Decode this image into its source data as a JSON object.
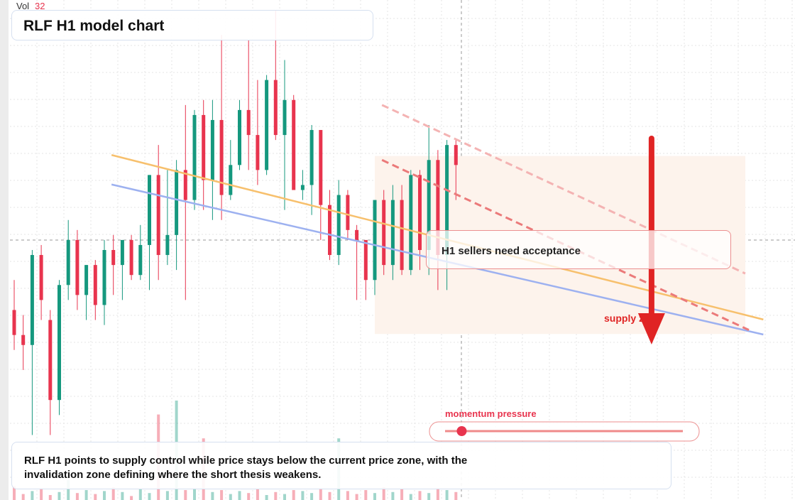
{
  "chart_data": {
    "type": "candlestick",
    "title": "RLF H1 model chart",
    "volume_label": "Vol",
    "volume_value": 32,
    "up_color": "#15987e",
    "down_color": "#e8344e",
    "ylim": [
      0,
      100
    ],
    "volume_lim": [
      0,
      100
    ],
    "open": [
      38,
      33,
      31,
      49,
      36,
      20,
      43,
      52,
      41,
      47,
      39,
      50,
      47,
      52,
      45,
      51,
      65,
      49,
      53,
      66,
      60,
      77,
      64,
      76,
      61,
      67,
      78,
      73,
      66,
      84,
      73,
      80,
      62,
      63,
      74,
      59,
      49,
      61,
      54,
      52,
      44,
      60,
      47,
      60,
      46,
      65,
      50,
      68,
      49,
      71
    ],
    "high": [
      44,
      37,
      50,
      51,
      38,
      44,
      56,
      54,
      47,
      48,
      52,
      53,
      52,
      53,
      55,
      65,
      71,
      66,
      68,
      79,
      78,
      80,
      80,
      93,
      72,
      80,
      92,
      84,
      85,
      98,
      88,
      81,
      66,
      75,
      74,
      62,
      64,
      62,
      55,
      52,
      60,
      62,
      63,
      63,
      66,
      66,
      75,
      70,
      72,
      72
    ],
    "low": [
      30,
      26,
      13,
      36,
      13,
      17,
      40,
      38,
      36,
      36,
      35,
      41,
      40,
      44,
      44,
      42,
      44,
      47,
      46,
      40,
      58,
      58,
      56,
      56,
      60,
      66,
      66,
      63,
      65,
      72,
      58,
      62,
      60,
      57,
      52,
      48,
      47,
      52,
      40,
      40,
      41,
      45,
      44,
      45,
      45,
      46,
      45,
      42,
      42,
      60
    ],
    "close": [
      33,
      31,
      49,
      40,
      20,
      43,
      52,
      41,
      47,
      39,
      50,
      47,
      52,
      45,
      51,
      65,
      49,
      53,
      66,
      60,
      77,
      64,
      76,
      61,
      67,
      78,
      73,
      66,
      84,
      73,
      80,
      62,
      63,
      74,
      59,
      49,
      61,
      54,
      52,
      44,
      60,
      47,
      60,
      46,
      65,
      50,
      68,
      49,
      71,
      67
    ],
    "volume": [
      14,
      6,
      9,
      12,
      5,
      8,
      20,
      7,
      10,
      6,
      9,
      13,
      8,
      4,
      11,
      7,
      86,
      9,
      100,
      10,
      12,
      62,
      8,
      10,
      6,
      9,
      7,
      11,
      5,
      8,
      6,
      10,
      9,
      7,
      12,
      8,
      62,
      9,
      6,
      10,
      7,
      13,
      8,
      11,
      6,
      9,
      7,
      12,
      10,
      8
    ],
    "trendlines": [
      {
        "color": "#f7c06d",
        "x": [
          10.8,
          83.1
        ],
        "y": [
          69.0,
          36.1
        ],
        "dashed": false
      },
      {
        "color": "#9db1f0",
        "x": [
          10.8,
          83.1
        ],
        "y": [
          63.1,
          33.1
        ],
        "dashed": false
      },
      {
        "color": "#eb7a7a",
        "x": [
          40.8,
          81.5
        ],
        "y": [
          68.0,
          34.0
        ],
        "dashed": true
      },
      {
        "color": "#f4b3b3",
        "x": [
          40.8,
          81.1
        ],
        "y": [
          79.0,
          45.3
        ],
        "dashed": true
      }
    ],
    "zone": {
      "x": [
        40.0,
        81.1
      ],
      "y": [
        68.8,
        33.2
      ],
      "color": "#fdf3ec"
    },
    "arrow": {
      "x": 70.7,
      "y": [
        72.3,
        31.1
      ],
      "color": "#e02424"
    },
    "annotations": {
      "acceptance": "H1 sellers need acceptance",
      "supply": "supply zone",
      "momentum": "momentum pressure",
      "momentum_value": 7,
      "summary": "RLF H1 points to supply control while price stays below the current price zone, with the invalidation zone defining where the short thesis weakens."
    }
  }
}
